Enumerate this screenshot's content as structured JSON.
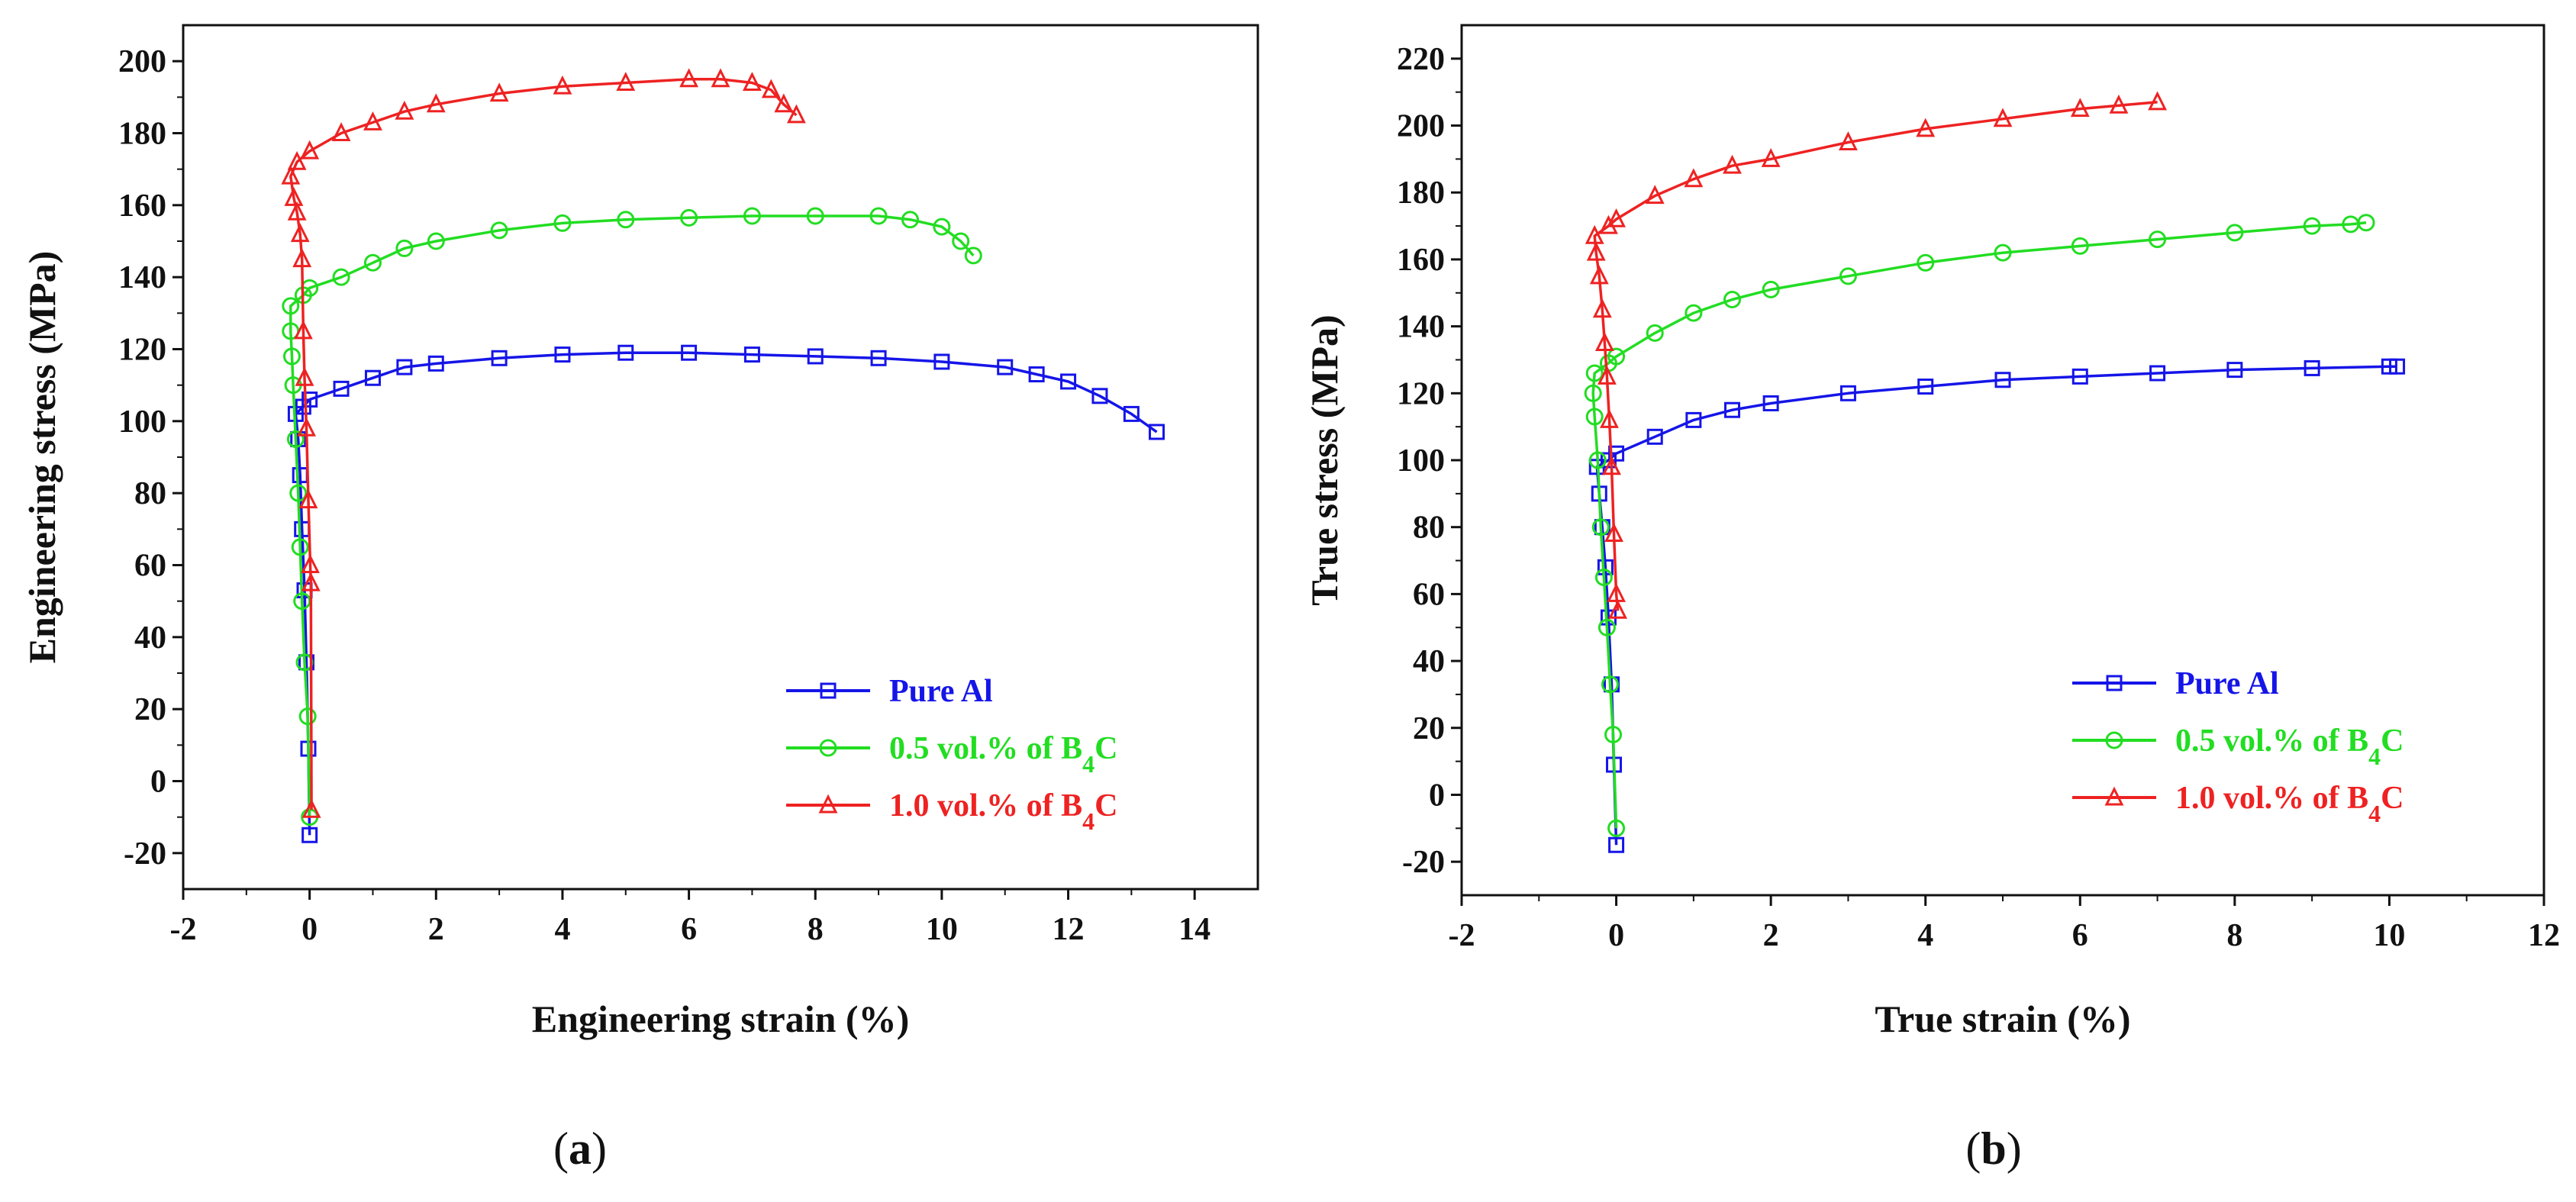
{
  "chart_data": [
    {
      "type": "line",
      "panel_label": "a",
      "title": "",
      "xlabel": "Engineering strain (%)",
      "ylabel": "Engineering stress (MPa)",
      "xlim": [
        -2,
        15
      ],
      "ylim": [
        -30,
        210
      ],
      "xticks": [
        -2,
        0,
        2,
        4,
        6,
        8,
        10,
        12,
        14
      ],
      "yticks": [
        -20,
        0,
        20,
        40,
        60,
        80,
        100,
        120,
        140,
        160,
        180,
        200
      ],
      "legend_position": "bottom-right",
      "series": [
        {
          "name": "Pure Al",
          "color": "#1515e8",
          "marker": "square",
          "points": [
            [
              0,
              -15
            ],
            [
              -0.02,
              9
            ],
            [
              -0.05,
              33
            ],
            [
              -0.08,
              53
            ],
            [
              -0.12,
              70
            ],
            [
              -0.15,
              85
            ],
            [
              -0.18,
              95
            ],
            [
              -0.22,
              102
            ],
            [
              -0.1,
              104
            ],
            [
              0,
              106
            ],
            [
              0.5,
              109
            ],
            [
              1,
              112
            ],
            [
              1.5,
              115
            ],
            [
              2,
              116
            ],
            [
              3,
              117.5
            ],
            [
              4,
              118.5
            ],
            [
              5,
              119
            ],
            [
              6,
              119
            ],
            [
              7,
              118.5
            ],
            [
              8,
              118
            ],
            [
              9,
              117.5
            ],
            [
              10,
              116.5
            ],
            [
              11,
              115
            ],
            [
              11.5,
              113
            ],
            [
              12,
              111
            ],
            [
              12.5,
              107
            ],
            [
              13,
              102
            ],
            [
              13.4,
              97
            ]
          ]
        },
        {
          "name": "0.5 vol.% of B4C",
          "color": "#22dd22",
          "marker": "circle",
          "points": [
            [
              0,
              -10
            ],
            [
              -0.03,
              18
            ],
            [
              -0.08,
              33
            ],
            [
              -0.12,
              50
            ],
            [
              -0.15,
              65
            ],
            [
              -0.18,
              80
            ],
            [
              -0.22,
              95
            ],
            [
              -0.26,
              110
            ],
            [
              -0.28,
              118
            ],
            [
              -0.3,
              125
            ],
            [
              -0.3,
              132
            ],
            [
              -0.1,
              135
            ],
            [
              0,
              137
            ],
            [
              0.5,
              140
            ],
            [
              1,
              144
            ],
            [
              1.5,
              148
            ],
            [
              2,
              150
            ],
            [
              3,
              153
            ],
            [
              4,
              155
            ],
            [
              5,
              156
            ],
            [
              6,
              156.5
            ],
            [
              7,
              157
            ],
            [
              8,
              157
            ],
            [
              9,
              157
            ],
            [
              9.5,
              156
            ],
            [
              10,
              154
            ],
            [
              10.3,
              150
            ],
            [
              10.5,
              146
            ]
          ]
        },
        {
          "name": "1.0 vol.% of B4C",
          "color": "#ee2222",
          "marker": "triangle",
          "points": [
            [
              0.03,
              -8
            ],
            [
              0.02,
              55
            ],
            [
              0.01,
              60
            ],
            [
              -0.02,
              78
            ],
            [
              -0.05,
              98
            ],
            [
              -0.08,
              112
            ],
            [
              -0.1,
              125
            ],
            [
              -0.12,
              145
            ],
            [
              -0.15,
              152
            ],
            [
              -0.2,
              158
            ],
            [
              -0.25,
              162
            ],
            [
              -0.3,
              168
            ],
            [
              -0.2,
              172
            ],
            [
              0,
              175
            ],
            [
              0.5,
              180
            ],
            [
              1,
              183
            ],
            [
              1.5,
              186
            ],
            [
              2,
              188
            ],
            [
              3,
              191
            ],
            [
              4,
              193
            ],
            [
              5,
              194
            ],
            [
              6,
              195
            ],
            [
              6.5,
              195
            ],
            [
              7,
              194
            ],
            [
              7.3,
              192
            ],
            [
              7.5,
              188
            ],
            [
              7.7,
              185
            ]
          ]
        }
      ]
    },
    {
      "type": "line",
      "panel_label": "b",
      "title": "",
      "xlabel": "True strain (%)",
      "ylabel": "True stress (MPa)",
      "xlim": [
        -2,
        12
      ],
      "ylim": [
        -30,
        230
      ],
      "xticks": [
        -2,
        0,
        2,
        4,
        6,
        8,
        10,
        12
      ],
      "yticks": [
        -20,
        0,
        20,
        40,
        60,
        80,
        100,
        120,
        140,
        160,
        180,
        200,
        220
      ],
      "legend_position": "bottom-right",
      "series": [
        {
          "name": "Pure Al",
          "color": "#1515e8",
          "marker": "square",
          "points": [
            [
              0,
              -15
            ],
            [
              -0.03,
              9
            ],
            [
              -0.06,
              33
            ],
            [
              -0.1,
              53
            ],
            [
              -0.14,
              68
            ],
            [
              -0.18,
              80
            ],
            [
              -0.22,
              90
            ],
            [
              -0.25,
              98
            ],
            [
              -0.1,
              100
            ],
            [
              0,
              102
            ],
            [
              0.5,
              107
            ],
            [
              1,
              112
            ],
            [
              1.5,
              115
            ],
            [
              2,
              117
            ],
            [
              3,
              120
            ],
            [
              4,
              122
            ],
            [
              5,
              124
            ],
            [
              6,
              125
            ],
            [
              7,
              126
            ],
            [
              8,
              127
            ],
            [
              9,
              127.5
            ],
            [
              10,
              128
            ],
            [
              10.1,
              128
            ]
          ]
        },
        {
          "name": "0.5 vol.% of B4C",
          "color": "#22dd22",
          "marker": "circle",
          "points": [
            [
              0,
              -10
            ],
            [
              -0.04,
              18
            ],
            [
              -0.08,
              33
            ],
            [
              -0.12,
              50
            ],
            [
              -0.16,
              65
            ],
            [
              -0.2,
              80
            ],
            [
              -0.24,
              100
            ],
            [
              -0.28,
              113
            ],
            [
              -0.3,
              120
            ],
            [
              -0.28,
              126
            ],
            [
              -0.1,
              129
            ],
            [
              0,
              131
            ],
            [
              0.5,
              138
            ],
            [
              1,
              144
            ],
            [
              1.5,
              148
            ],
            [
              2,
              151
            ],
            [
              3,
              155
            ],
            [
              4,
              159
            ],
            [
              5,
              162
            ],
            [
              6,
              164
            ],
            [
              7,
              166
            ],
            [
              8,
              168
            ],
            [
              9,
              170
            ],
            [
              9.5,
              170.5
            ],
            [
              9.7,
              171
            ]
          ]
        },
        {
          "name": "1.0 vol.% of B4C",
          "color": "#ee2222",
          "marker": "triangle",
          "points": [
            [
              0.02,
              55
            ],
            [
              0,
              60
            ],
            [
              -0.03,
              78
            ],
            [
              -0.06,
              98
            ],
            [
              -0.09,
              112
            ],
            [
              -0.12,
              125
            ],
            [
              -0.15,
              135
            ],
            [
              -0.18,
              145
            ],
            [
              -0.22,
              155
            ],
            [
              -0.26,
              162
            ],
            [
              -0.28,
              167
            ],
            [
              -0.1,
              170
            ],
            [
              0,
              172
            ],
            [
              0.5,
              179
            ],
            [
              1,
              184
            ],
            [
              1.5,
              188
            ],
            [
              2,
              190
            ],
            [
              3,
              195
            ],
            [
              4,
              199
            ],
            [
              5,
              202
            ],
            [
              6,
              205
            ],
            [
              6.5,
              206
            ],
            [
              7,
              207
            ]
          ]
        }
      ]
    }
  ]
}
